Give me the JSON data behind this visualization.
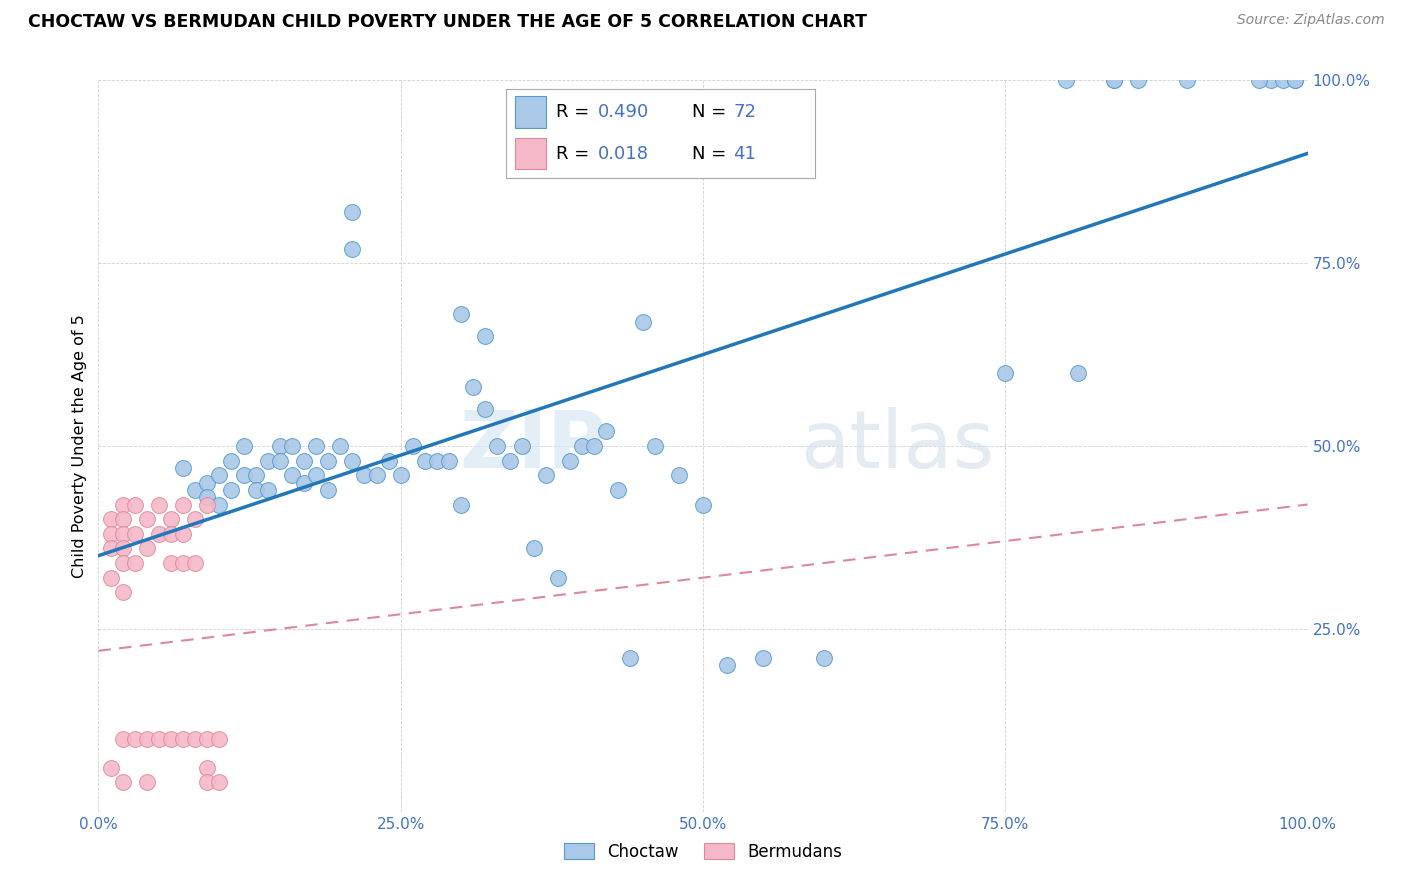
{
  "title": "CHOCTAW VS BERMUDAN CHILD POVERTY UNDER THE AGE OF 5 CORRELATION CHART",
  "source": "Source: ZipAtlas.com",
  "ylabel": "Child Poverty Under the Age of 5",
  "xlim": [
    0,
    1
  ],
  "ylim": [
    0,
    1
  ],
  "xticks": [
    0.0,
    0.25,
    0.5,
    0.75,
    1.0
  ],
  "yticks": [
    0.0,
    0.25,
    0.5,
    0.75,
    1.0
  ],
  "xticklabels": [
    "0.0%",
    "25.0%",
    "50.0%",
    "75.0%",
    "100.0%"
  ],
  "yticklabels": [
    "",
    "25.0%",
    "50.0%",
    "75.0%",
    "100.0%"
  ],
  "choctaw_R": "0.490",
  "choctaw_N": "72",
  "bermudan_R": "0.018",
  "bermudan_N": "41",
  "choctaw_color": "#aac8e8",
  "choctaw_edge_color": "#5599cc",
  "choctaw_line_color": "#2277bb",
  "bermudan_color": "#f4b8c8",
  "bermudan_edge_color": "#e08898",
  "bermudan_line_color": "#dd8899",
  "watermark_zip": "ZIP",
  "watermark_atlas": "atlas",
  "tick_color": "#4472c4",
  "choctaw_x": [
    0.21,
    0.21,
    0.3,
    0.32,
    0.81,
    0.97,
    0.07,
    0.08,
    0.09,
    0.09,
    0.1,
    0.1,
    0.11,
    0.11,
    0.12,
    0.12,
    0.13,
    0.13,
    0.14,
    0.14,
    0.15,
    0.15,
    0.16,
    0.16,
    0.17,
    0.17,
    0.18,
    0.18,
    0.19,
    0.19,
    0.2,
    0.21,
    0.22,
    0.23,
    0.24,
    0.25,
    0.26,
    0.27,
    0.28,
    0.29,
    0.3,
    0.31,
    0.32,
    0.33,
    0.34,
    0.35,
    0.36,
    0.37,
    0.38,
    0.39,
    0.4,
    0.41,
    0.42,
    0.43,
    0.44,
    0.45,
    0.46,
    0.48,
    0.5,
    0.52,
    0.55,
    0.6,
    0.75,
    0.8,
    0.84,
    0.84,
    0.86,
    0.9,
    0.96,
    0.98,
    0.99,
    0.99
  ],
  "choctaw_y": [
    0.82,
    0.77,
    0.68,
    0.65,
    0.6,
    1.0,
    0.47,
    0.44,
    0.45,
    0.43,
    0.46,
    0.42,
    0.48,
    0.44,
    0.5,
    0.46,
    0.46,
    0.44,
    0.48,
    0.44,
    0.5,
    0.48,
    0.5,
    0.46,
    0.48,
    0.45,
    0.5,
    0.46,
    0.48,
    0.44,
    0.5,
    0.48,
    0.46,
    0.46,
    0.48,
    0.46,
    0.5,
    0.48,
    0.48,
    0.48,
    0.42,
    0.58,
    0.55,
    0.5,
    0.48,
    0.5,
    0.36,
    0.46,
    0.32,
    0.48,
    0.5,
    0.5,
    0.52,
    0.44,
    0.21,
    0.67,
    0.5,
    0.46,
    0.42,
    0.2,
    0.21,
    0.21,
    0.6,
    1.0,
    1.0,
    1.0,
    1.0,
    1.0,
    1.0,
    1.0,
    1.0,
    1.0
  ],
  "bermudan_x": [
    0.01,
    0.01,
    0.01,
    0.01,
    0.01,
    0.02,
    0.02,
    0.02,
    0.02,
    0.02,
    0.02,
    0.02,
    0.02,
    0.03,
    0.03,
    0.03,
    0.03,
    0.04,
    0.04,
    0.04,
    0.04,
    0.05,
    0.05,
    0.05,
    0.06,
    0.06,
    0.06,
    0.06,
    0.07,
    0.07,
    0.07,
    0.07,
    0.08,
    0.08,
    0.08,
    0.09,
    0.09,
    0.09,
    0.09,
    0.1,
    0.1
  ],
  "bermudan_y": [
    0.4,
    0.38,
    0.36,
    0.32,
    0.06,
    0.42,
    0.4,
    0.38,
    0.36,
    0.34,
    0.3,
    0.1,
    0.04,
    0.42,
    0.38,
    0.34,
    0.1,
    0.4,
    0.36,
    0.1,
    0.04,
    0.42,
    0.38,
    0.1,
    0.4,
    0.38,
    0.34,
    0.1,
    0.42,
    0.38,
    0.34,
    0.1,
    0.4,
    0.34,
    0.1,
    0.42,
    0.1,
    0.06,
    0.04,
    0.1,
    0.04
  ],
  "choctaw_line_x0": 0.0,
  "choctaw_line_x1": 1.0,
  "choctaw_line_y0": 0.35,
  "choctaw_line_y1": 0.9,
  "bermudan_line_x0": 0.0,
  "bermudan_line_x1": 1.0,
  "bermudan_line_y0": 0.22,
  "bermudan_line_y1": 0.42
}
